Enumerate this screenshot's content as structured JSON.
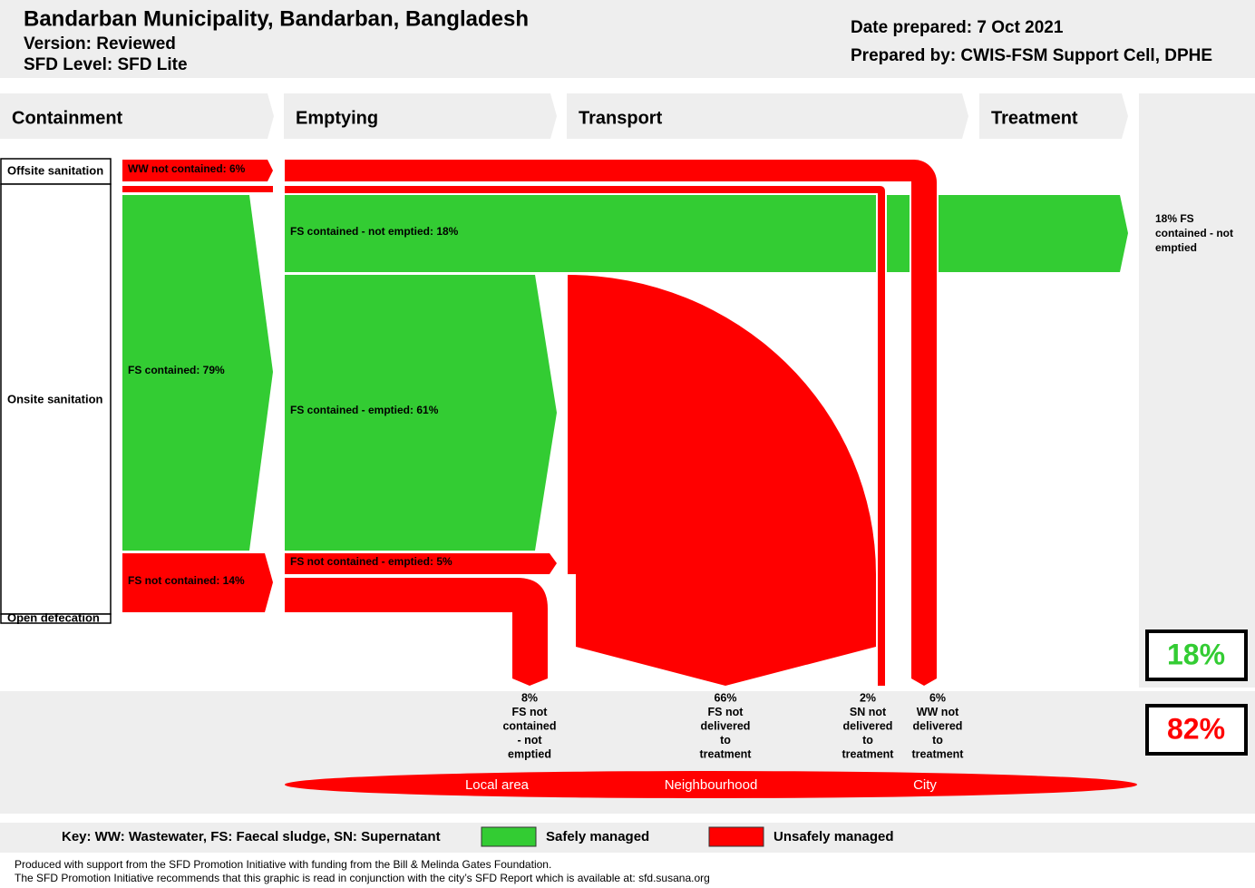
{
  "header": {
    "title": "Bandarban Municipality, Bandarban, Bangladesh",
    "version": "Version: Reviewed",
    "level": "SFD Level: SFD Lite",
    "date": "Date prepared: 7 Oct 2021",
    "prepared_by": "Prepared by: CWIS-FSM Support Cell, DPHE"
  },
  "stages": [
    "Containment",
    "Emptying",
    "Transport",
    "Treatment"
  ],
  "rows": [
    "Offsite sanitation",
    "Onsite sanitation",
    "Open defecation"
  ],
  "flows": [
    "WW not contained: 6%",
    "FS contained: 79%",
    "FS not contained: 14%",
    "FS contained - not emptied: 18%",
    "FS contained - emptied: 61%",
    "FS not contained - emptied: 5%"
  ],
  "outcomes": [
    [
      "8%",
      "FS not",
      "contained",
      "- not",
      "emptied"
    ],
    [
      "66%",
      "FS not",
      "delivered",
      "to",
      "treatment"
    ],
    [
      "2%",
      "SN not",
      "delivered",
      "to",
      "treatment"
    ],
    [
      "6%",
      "WW not",
      "delivered",
      "to",
      "treatment"
    ]
  ],
  "treatment_note": [
    "18% FS",
    "contained - not",
    "emptied"
  ],
  "safe": "18%",
  "unsafe": "82%",
  "areas": [
    "Local area",
    "Neighbourhood",
    "City"
  ],
  "key": {
    "title": "Key: WW: Wastewater, FS: Faecal sludge, SN: Supernatant",
    "safe": "Safely managed",
    "unsafe": "Unsafely managed"
  },
  "footer": [
    "Produced with support from the SFD Promotion Initiative with funding from the Bill & Melinda Gates Foundation.",
    "The SFD Promotion Initiative recommends that this graphic is read in conjunction with the city’s SFD Report which is available at: sfd.susana.org"
  ]
}
